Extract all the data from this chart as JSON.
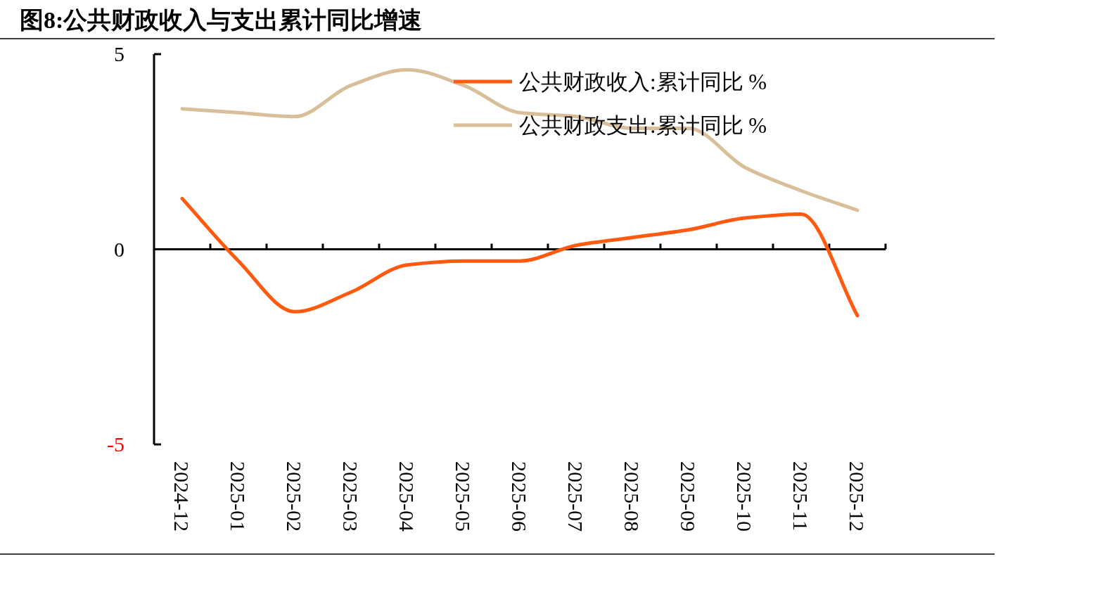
{
  "chart_data": {
    "type": "line",
    "title": "图8:公共财政收入与支出累计同比增速",
    "categories": [
      "2024-12",
      "2025-01",
      "2025-02",
      "2025-03",
      "2025-04",
      "2025-05",
      "2025-06",
      "2025-07",
      "2025-08",
      "2025-09",
      "2025-10",
      "2025-11",
      "2025-12"
    ],
    "series": [
      {
        "name": "公共财政收入:累计同比 %",
        "color": "#ff5a0f",
        "values": [
          1.3,
          -0.3,
          -1.6,
          -1.1,
          -0.4,
          -0.3,
          -0.3,
          0.1,
          0.3,
          0.5,
          0.8,
          0.9,
          -1.7
        ]
      },
      {
        "name": "公共财政支出:累计同比 %",
        "color": "#d9bf99",
        "values": [
          3.6,
          3.5,
          3.4,
          4.2,
          4.6,
          4.2,
          3.5,
          3.4,
          3.1,
          3.1,
          2.1,
          1.5,
          1.0
        ]
      }
    ],
    "ylim": [
      -5,
      5
    ],
    "yticks": [
      -5,
      0,
      5
    ],
    "legend": "top right",
    "line_style": "solid",
    "marker": "none"
  }
}
